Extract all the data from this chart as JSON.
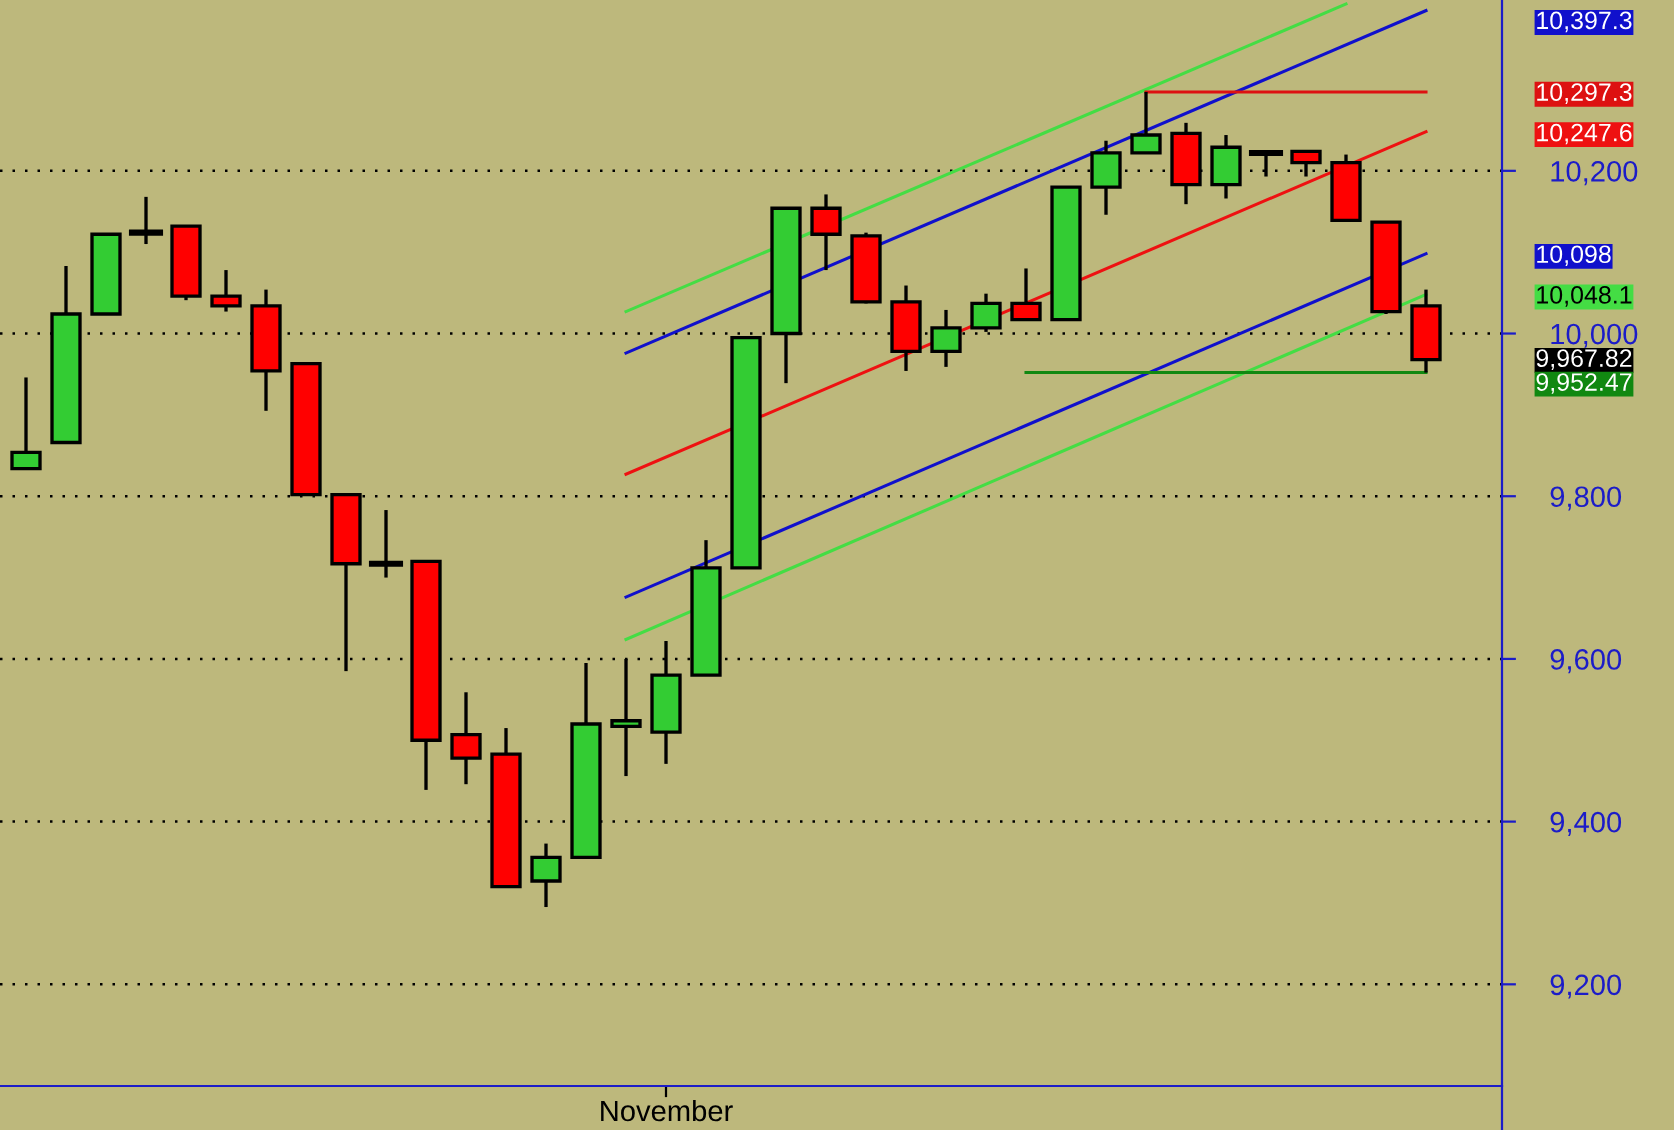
{
  "chart_data": {
    "type": "candlestick",
    "categories": [
      null,
      null,
      null,
      null,
      null,
      null,
      null,
      null,
      null,
      null,
      null,
      null,
      null,
      null,
      null,
      null,
      "November",
      null,
      null,
      null,
      null,
      null,
      null,
      null,
      null,
      null,
      null,
      null,
      null,
      null,
      null,
      null,
      null,
      null,
      null,
      null
    ],
    "ohlc": [
      [
        9834,
        9946,
        9834,
        9854
      ],
      [
        9866,
        10083,
        9866,
        10024
      ],
      [
        10024,
        10122,
        10024,
        10122
      ],
      [
        10124,
        10168,
        10110,
        10124
      ],
      [
        10132,
        10132,
        10041,
        10046
      ],
      [
        10046,
        10078,
        10027,
        10034
      ],
      [
        10034,
        10054,
        9905,
        9954
      ],
      [
        9963,
        9963,
        9802,
        9802
      ],
      [
        9802,
        9802,
        9585,
        9717
      ],
      [
        9717,
        9783,
        9700,
        9717
      ],
      [
        9720,
        9720,
        9439,
        9500
      ],
      [
        9507,
        9559,
        9446,
        9478
      ],
      [
        9483,
        9515,
        9320,
        9320
      ],
      [
        9327,
        9373,
        9295,
        9356
      ],
      [
        9356,
        9595,
        9356,
        9520
      ],
      [
        9517,
        9600,
        9456,
        9524
      ],
      [
        9510,
        9622,
        9471,
        9580
      ],
      [
        9580,
        9746,
        9580,
        9712
      ],
      [
        9712,
        9995,
        9712,
        9995
      ],
      [
        10000,
        10154,
        9939,
        10154
      ],
      [
        10154,
        10171,
        10078,
        10122
      ],
      [
        10120,
        10124,
        10037,
        10039
      ],
      [
        10039,
        10059,
        9954,
        9978
      ],
      [
        9978,
        10029,
        9959,
        10007
      ],
      [
        10007,
        10049,
        10002,
        10037
      ],
      [
        10037,
        10080,
        10017,
        10017
      ],
      [
        10017,
        10180,
        10017,
        10180
      ],
      [
        10180,
        10237,
        10146,
        10222
      ],
      [
        10222,
        10297,
        10222,
        10244
      ],
      [
        10246,
        10259,
        10159,
        10183
      ],
      [
        10183,
        10244,
        10166,
        10229
      ],
      [
        10222,
        10222,
        10193,
        10222
      ],
      [
        10224,
        10224,
        10193,
        10210
      ],
      [
        10210,
        10220,
        10139,
        10139
      ],
      [
        10137,
        10137,
        10024,
        10027
      ],
      [
        10034,
        10054,
        9952,
        9968
      ]
    ],
    "colors": [
      "#33cc33",
      "#33cc33",
      "#33cc33",
      "#000000",
      "#ff0000",
      "#ff0000",
      "#ff0000",
      "#ff0000",
      "#ff0000",
      "#000000",
      "#ff0000",
      "#ff0000",
      "#ff0000",
      "#33cc33",
      "#33cc33",
      "#33cc33",
      "#33cc33",
      "#33cc33",
      "#33cc33",
      "#33cc33",
      "#ff0000",
      "#ff0000",
      "#ff0000",
      "#33cc33",
      "#33cc33",
      "#ff0000",
      "#33cc33",
      "#33cc33",
      "#33cc33",
      "#ff0000",
      "#33cc33",
      "#000000",
      "#ff0000",
      "#ff0000",
      "#ff0000",
      "#ff0000"
    ],
    "series": [
      {
        "type": "line",
        "color": "#44dd44",
        "values": [
          null,
          null,
          null,
          null,
          null,
          null,
          null,
          null,
          null,
          null,
          null,
          null,
          null,
          null,
          null,
          10027,
          null,
          null,
          null,
          null,
          null,
          null,
          null,
          null,
          null,
          null,
          null,
          null,
          null,
          null,
          null,
          null,
          null,
          10405,
          null,
          null
        ]
      },
      {
        "type": "line",
        "color": "#1010cc",
        "values": [
          null,
          null,
          null,
          null,
          null,
          null,
          null,
          null,
          null,
          null,
          null,
          null,
          null,
          null,
          null,
          9976,
          null,
          null,
          null,
          null,
          null,
          null,
          null,
          null,
          null,
          null,
          null,
          null,
          null,
          null,
          null,
          null,
          null,
          null,
          null,
          10397
        ]
      },
      {
        "type": "line",
        "color": "#ee1111",
        "values": [
          null,
          null,
          null,
          null,
          null,
          null,
          null,
          null,
          null,
          null,
          null,
          null,
          null,
          null,
          null,
          9827,
          null,
          null,
          null,
          null,
          null,
          null,
          null,
          null,
          null,
          null,
          null,
          null,
          null,
          null,
          null,
          null,
          null,
          null,
          null,
          10248
        ]
      },
      {
        "type": "line",
        "color": "#1010cc",
        "values": [
          null,
          null,
          null,
          null,
          null,
          null,
          null,
          null,
          null,
          null,
          null,
          null,
          null,
          null,
          null,
          9676,
          null,
          null,
          null,
          null,
          null,
          null,
          null,
          null,
          null,
          null,
          null,
          null,
          null,
          null,
          null,
          null,
          null,
          null,
          null,
          10098
        ]
      },
      {
        "type": "line",
        "color": "#44dd44",
        "values": [
          null,
          null,
          null,
          null,
          null,
          null,
          null,
          null,
          null,
          null,
          null,
          null,
          null,
          null,
          null,
          9624,
          null,
          null,
          null,
          null,
          null,
          null,
          null,
          null,
          null,
          null,
          null,
          null,
          null,
          null,
          null,
          null,
          null,
          null,
          null,
          10048
        ]
      },
      {
        "type": "line",
        "color": "#dd1111",
        "values": [
          null,
          null,
          null,
          null,
          null,
          null,
          null,
          null,
          null,
          null,
          null,
          null,
          null,
          null,
          null,
          null,
          null,
          null,
          null,
          null,
          null,
          null,
          null,
          null,
          null,
          null,
          null,
          null,
          10297,
          null,
          null,
          null,
          null,
          null,
          null,
          10297
        ]
      },
      {
        "type": "line",
        "color": "#118811",
        "values": [
          null,
          null,
          null,
          null,
          null,
          null,
          null,
          null,
          null,
          null,
          null,
          null,
          null,
          null,
          null,
          null,
          null,
          null,
          null,
          null,
          null,
          null,
          null,
          null,
          null,
          9952,
          null,
          null,
          null,
          null,
          null,
          null,
          null,
          null,
          null,
          9952
        ]
      }
    ],
    "y2lim": [
      9075,
      10410
    ],
    "y2ticks": [
      {
        "value": 10397.3,
        "label": "10,397.3"
      },
      {
        "value": 10297.3,
        "label": "10,297.3"
      },
      {
        "value": 10247.6,
        "label": "10,247.6"
      },
      {
        "value": 10098,
        "label": "10,098"
      },
      {
        "value": 10048.1,
        "label": "10,048.1"
      },
      {
        "value": 9967.82,
        "label": "9,967.82"
      },
      {
        "value": 9952.47,
        "label": "9,952.47"
      }
    ],
    "ylim": [
      9075,
      10410
    ],
    "yticks": [
      {
        "value": 9200,
        "label": "9,200"
      },
      {
        "value": 9400,
        "label": "9,400"
      },
      {
        "value": 9600,
        "label": "9,600"
      },
      {
        "value": 9800,
        "label": "9,800"
      },
      {
        "value": 10000,
        "label": "10,000"
      },
      {
        "value": 10200,
        "label": "10,200"
      }
    ],
    "grid": "y"
  }
}
